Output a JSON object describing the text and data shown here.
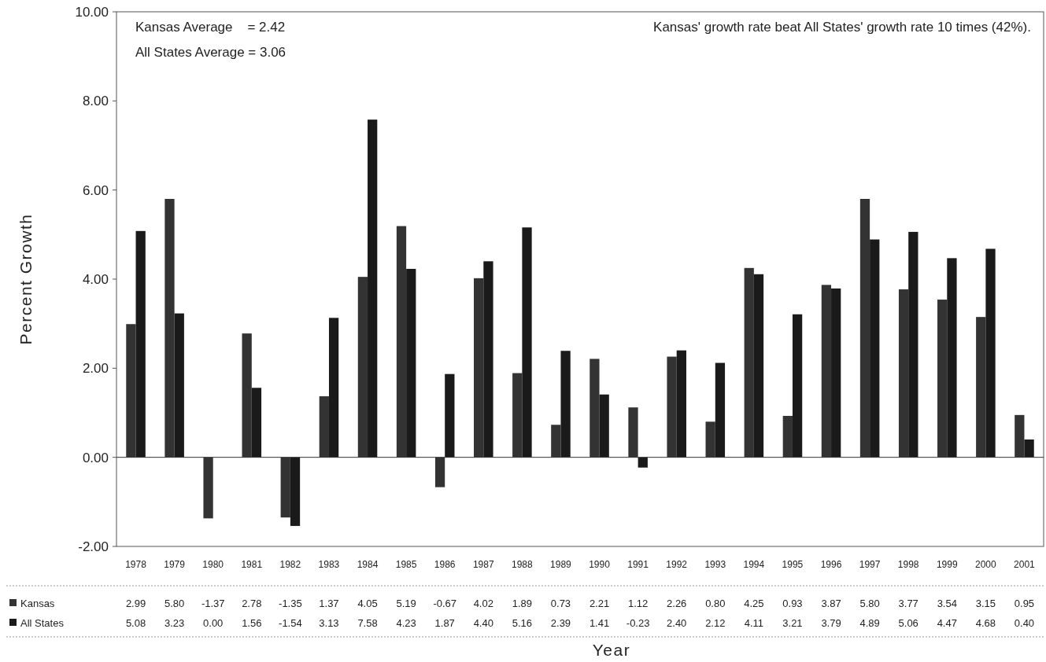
{
  "chart_data": {
    "type": "bar",
    "xlabel": "Year",
    "ylabel": "Percent Growth",
    "categories": [
      "1978",
      "1979",
      "1980",
      "1981",
      "1982",
      "1983",
      "1984",
      "1985",
      "1986",
      "1987",
      "1988",
      "1989",
      "1990",
      "1991",
      "1992",
      "1993",
      "1994",
      "1995",
      "1996",
      "1997",
      "1998",
      "1999",
      "2000",
      "2001"
    ],
    "series": [
      {
        "name": "Kansas",
        "color": "#333333",
        "values": [
          2.99,
          5.8,
          -1.37,
          2.78,
          -1.35,
          1.37,
          4.05,
          5.19,
          -0.67,
          4.02,
          1.89,
          0.73,
          2.21,
          1.12,
          2.26,
          0.8,
          4.25,
          0.93,
          3.87,
          5.8,
          3.77,
          3.54,
          3.15,
          0.95
        ],
        "value_labels": [
          "2.99",
          "5.80",
          "-1.37",
          "2.78",
          "-1.35",
          "1.37",
          "4.05",
          "5.19",
          "-0.67",
          "4.02",
          "1.89",
          "0.73",
          "2.21",
          "1.12",
          "2.26",
          "0.80",
          "4.25",
          "0.93",
          "3.87",
          "5.80",
          "3.77",
          "3.54",
          "3.15",
          "0.95"
        ]
      },
      {
        "name": "All States",
        "color": "#1a1a1a",
        "values": [
          5.08,
          3.23,
          0.0,
          1.56,
          -1.54,
          3.13,
          7.58,
          4.23,
          1.87,
          4.4,
          5.16,
          2.39,
          1.41,
          -0.23,
          2.4,
          2.12,
          4.11,
          3.21,
          3.79,
          4.89,
          5.06,
          4.47,
          4.68,
          0.4
        ],
        "value_labels": [
          "5.08",
          "3.23",
          "0.00",
          "1.56",
          "-1.54",
          "3.13",
          "7.58",
          "4.23",
          "1.87",
          "4.40",
          "5.16",
          "2.39",
          "1.41",
          "-0.23",
          "2.40",
          "2.12",
          "4.11",
          "3.21",
          "3.79",
          "4.89",
          "5.06",
          "4.47",
          "4.68",
          "0.40"
        ]
      }
    ],
    "ylim": [
      -2,
      10
    ],
    "yticks": [
      {
        "value": -2,
        "label": "-2.00"
      },
      {
        "value": 0,
        "label": "0.00"
      },
      {
        "value": 2,
        "label": "2.00"
      },
      {
        "value": 4,
        "label": "4.00"
      },
      {
        "value": 6,
        "label": "6.00"
      },
      {
        "value": 8,
        "label": "8.00"
      },
      {
        "value": 10,
        "label": "10.00"
      }
    ],
    "legend": "bottom",
    "annotations": [
      "Kansas Average    = 2.42",
      "All States Average = 3.06",
      "Kansas' growth rate beat All States' growth rate 10 times (42%)."
    ]
  }
}
